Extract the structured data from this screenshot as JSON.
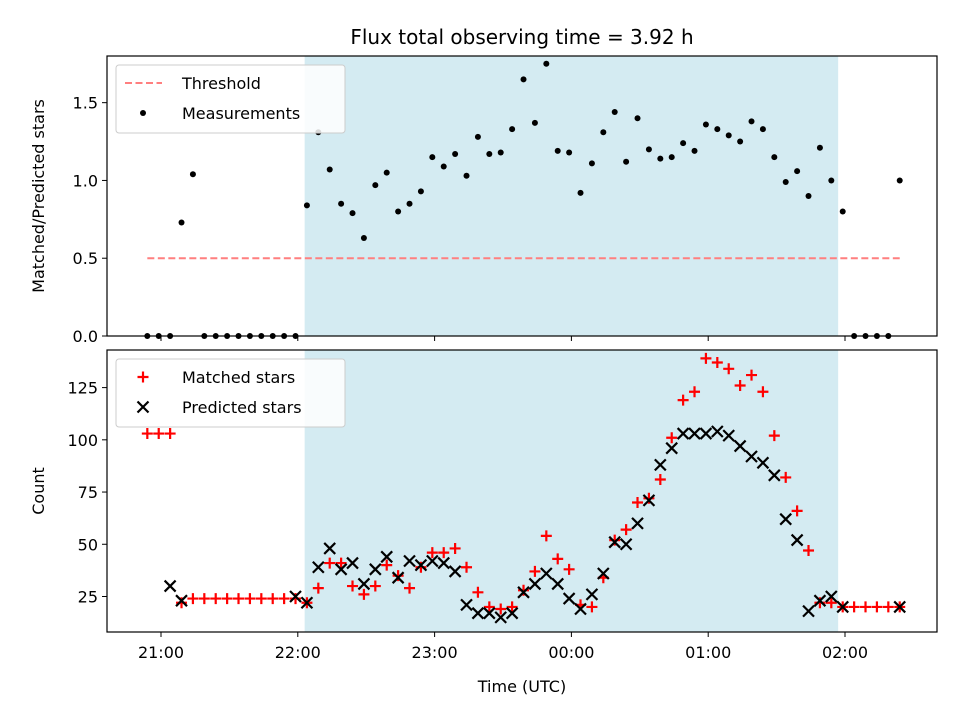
{
  "chart_data": [
    {
      "type": "scatter",
      "title": "Flux total observing time = 3.92 h",
      "xlabel": "",
      "ylabel": "Matched/Predicted stars",
      "ylim": [
        0,
        1.8
      ],
      "yticks": [
        "0.0",
        "0.5",
        "1.0",
        "1.5"
      ],
      "shaded_region": {
        "x": [
          "22:03",
          "01:57"
        ],
        "color": "#d4ebf2"
      },
      "legend": {
        "location": "upper-left",
        "entries": [
          "Threshold",
          "Measurements"
        ]
      },
      "series": [
        {
          "name": "Threshold",
          "style": "dashed-line",
          "color": "#ff7f7f",
          "x": [
            "20:54",
            "02:24"
          ],
          "y": [
            0.5,
            0.5
          ]
        },
        {
          "name": "Measurements",
          "style": "dots",
          "color": "#000000",
          "x": [
            "20:54",
            "20:59",
            "21:04",
            "21:09",
            "21:14",
            "21:19",
            "21:24",
            "21:29",
            "21:34",
            "21:39",
            "21:44",
            "21:49",
            "21:54",
            "21:59",
            "22:04",
            "22:09",
            "22:14",
            "22:19",
            "22:24",
            "22:29",
            "22:34",
            "22:39",
            "22:44",
            "22:49",
            "22:54",
            "22:59",
            "23:04",
            "23:09",
            "23:14",
            "23:19",
            "23:24",
            "23:29",
            "23:34",
            "23:39",
            "23:44",
            "23:49",
            "23:54",
            "23:59",
            "00:04",
            "00:09",
            "00:14",
            "00:19",
            "00:24",
            "00:29",
            "00:34",
            "00:39",
            "00:44",
            "00:49",
            "00:54",
            "00:59",
            "01:04",
            "01:09",
            "01:14",
            "01:19",
            "01:24",
            "01:29",
            "01:34",
            "01:39",
            "01:44",
            "01:49",
            "01:54",
            "01:59",
            "02:04",
            "02:09",
            "02:14",
            "02:19",
            "02:24"
          ],
          "y": [
            0.0,
            0.0,
            0.0,
            0.73,
            1.04,
            0.0,
            0.0,
            0.0,
            0.0,
            0.0,
            0.0,
            0.0,
            0.0,
            0.0,
            0.84,
            1.31,
            1.07,
            0.85,
            0.79,
            0.63,
            0.97,
            1.05,
            0.8,
            0.85,
            0.93,
            1.15,
            1.09,
            1.17,
            1.03,
            1.28,
            1.17,
            1.18,
            1.33,
            1.65,
            1.37,
            1.75,
            1.19,
            1.18,
            0.92,
            1.11,
            1.31,
            1.44,
            1.12,
            1.4,
            1.2,
            1.14,
            1.15,
            1.24,
            1.19,
            1.36,
            1.33,
            1.29,
            1.25,
            1.38,
            1.33,
            1.15,
            0.99,
            1.06,
            0.9,
            1.21,
            1.0,
            0.8,
            0.0,
            0.0,
            0.0,
            0.0,
            1.0
          ]
        }
      ]
    },
    {
      "type": "scatter",
      "title": "",
      "xlabel": "Time (UTC)",
      "ylabel": "Count",
      "ylim": [
        8,
        143
      ],
      "yticks": [
        "25",
        "50",
        "75",
        "100",
        "125"
      ],
      "xticks": [
        "21:00",
        "22:00",
        "23:00",
        "00:00",
        "01:00",
        "02:00"
      ],
      "shaded_region": {
        "x": [
          "22:03",
          "01:57"
        ],
        "color": "#d4ebf2"
      },
      "legend": {
        "location": "upper-left",
        "entries": [
          "Matched stars",
          "Predicted stars"
        ]
      },
      "series": [
        {
          "name": "Matched stars",
          "marker": "+",
          "color": "#ff0000",
          "x": [
            "20:54",
            "20:59",
            "21:04",
            "21:09",
            "21:14",
            "21:19",
            "21:24",
            "21:29",
            "21:34",
            "21:39",
            "21:44",
            "21:49",
            "21:54",
            "21:59",
            "22:04",
            "22:09",
            "22:14",
            "22:19",
            "22:24",
            "22:29",
            "22:34",
            "22:39",
            "22:44",
            "22:49",
            "22:54",
            "22:59",
            "23:04",
            "23:09",
            "23:14",
            "23:19",
            "23:24",
            "23:29",
            "23:34",
            "23:39",
            "23:44",
            "23:49",
            "23:54",
            "23:59",
            "00:04",
            "00:09",
            "00:14",
            "00:19",
            "00:24",
            "00:29",
            "00:34",
            "00:39",
            "00:44",
            "00:49",
            "00:54",
            "00:59",
            "01:04",
            "01:09",
            "01:14",
            "01:19",
            "01:24",
            "01:29",
            "01:34",
            "01:39",
            "01:44",
            "01:49",
            "01:54",
            "01:59",
            "02:04",
            "02:09",
            "02:14",
            "02:19",
            "02:24"
          ],
          "y": [
            103,
            103,
            103,
            22,
            24,
            24,
            24,
            24,
            24,
            24,
            24,
            24,
            24,
            24,
            22,
            29,
            41,
            41,
            30,
            26,
            30,
            40,
            35,
            29,
            39,
            46,
            46,
            48,
            39,
            27,
            20,
            19,
            20,
            28,
            37,
            54,
            43,
            38,
            21,
            20,
            34,
            52,
            57,
            70,
            72,
            81,
            101,
            119,
            123,
            139,
            137,
            134,
            126,
            131,
            123,
            102,
            82,
            66,
            47,
            22,
            22,
            20,
            20,
            20,
            20,
            20,
            20
          ]
        },
        {
          "name": "Predicted stars",
          "marker": "x",
          "color": "#000000",
          "x": [
            "21:04",
            "21:09",
            "21:59",
            "22:04",
            "22:09",
            "22:14",
            "22:19",
            "22:24",
            "22:29",
            "22:34",
            "22:39",
            "22:44",
            "22:49",
            "22:54",
            "22:59",
            "23:04",
            "23:09",
            "23:14",
            "23:19",
            "23:24",
            "23:29",
            "23:34",
            "23:39",
            "23:44",
            "23:49",
            "23:54",
            "23:59",
            "00:04",
            "00:09",
            "00:14",
            "00:19",
            "00:24",
            "00:29",
            "00:34",
            "00:39",
            "00:44",
            "00:49",
            "00:54",
            "00:59",
            "01:04",
            "01:09",
            "01:14",
            "01:19",
            "01:24",
            "01:29",
            "01:34",
            "01:39",
            "01:44",
            "01:49",
            "01:54",
            "01:59",
            "02:24"
          ],
          "y": [
            30,
            23,
            25,
            22,
            39,
            48,
            38,
            41,
            31,
            38,
            44,
            34,
            42,
            40,
            42,
            41,
            37,
            21,
            17,
            17,
            15,
            17,
            27,
            31,
            36,
            31,
            24,
            19,
            26,
            36,
            51,
            50,
            60,
            71,
            88,
            96,
            103,
            103,
            103,
            104,
            102,
            97,
            92,
            89,
            83,
            62,
            52,
            18,
            23,
            25,
            20,
            20
          ]
        }
      ]
    }
  ]
}
